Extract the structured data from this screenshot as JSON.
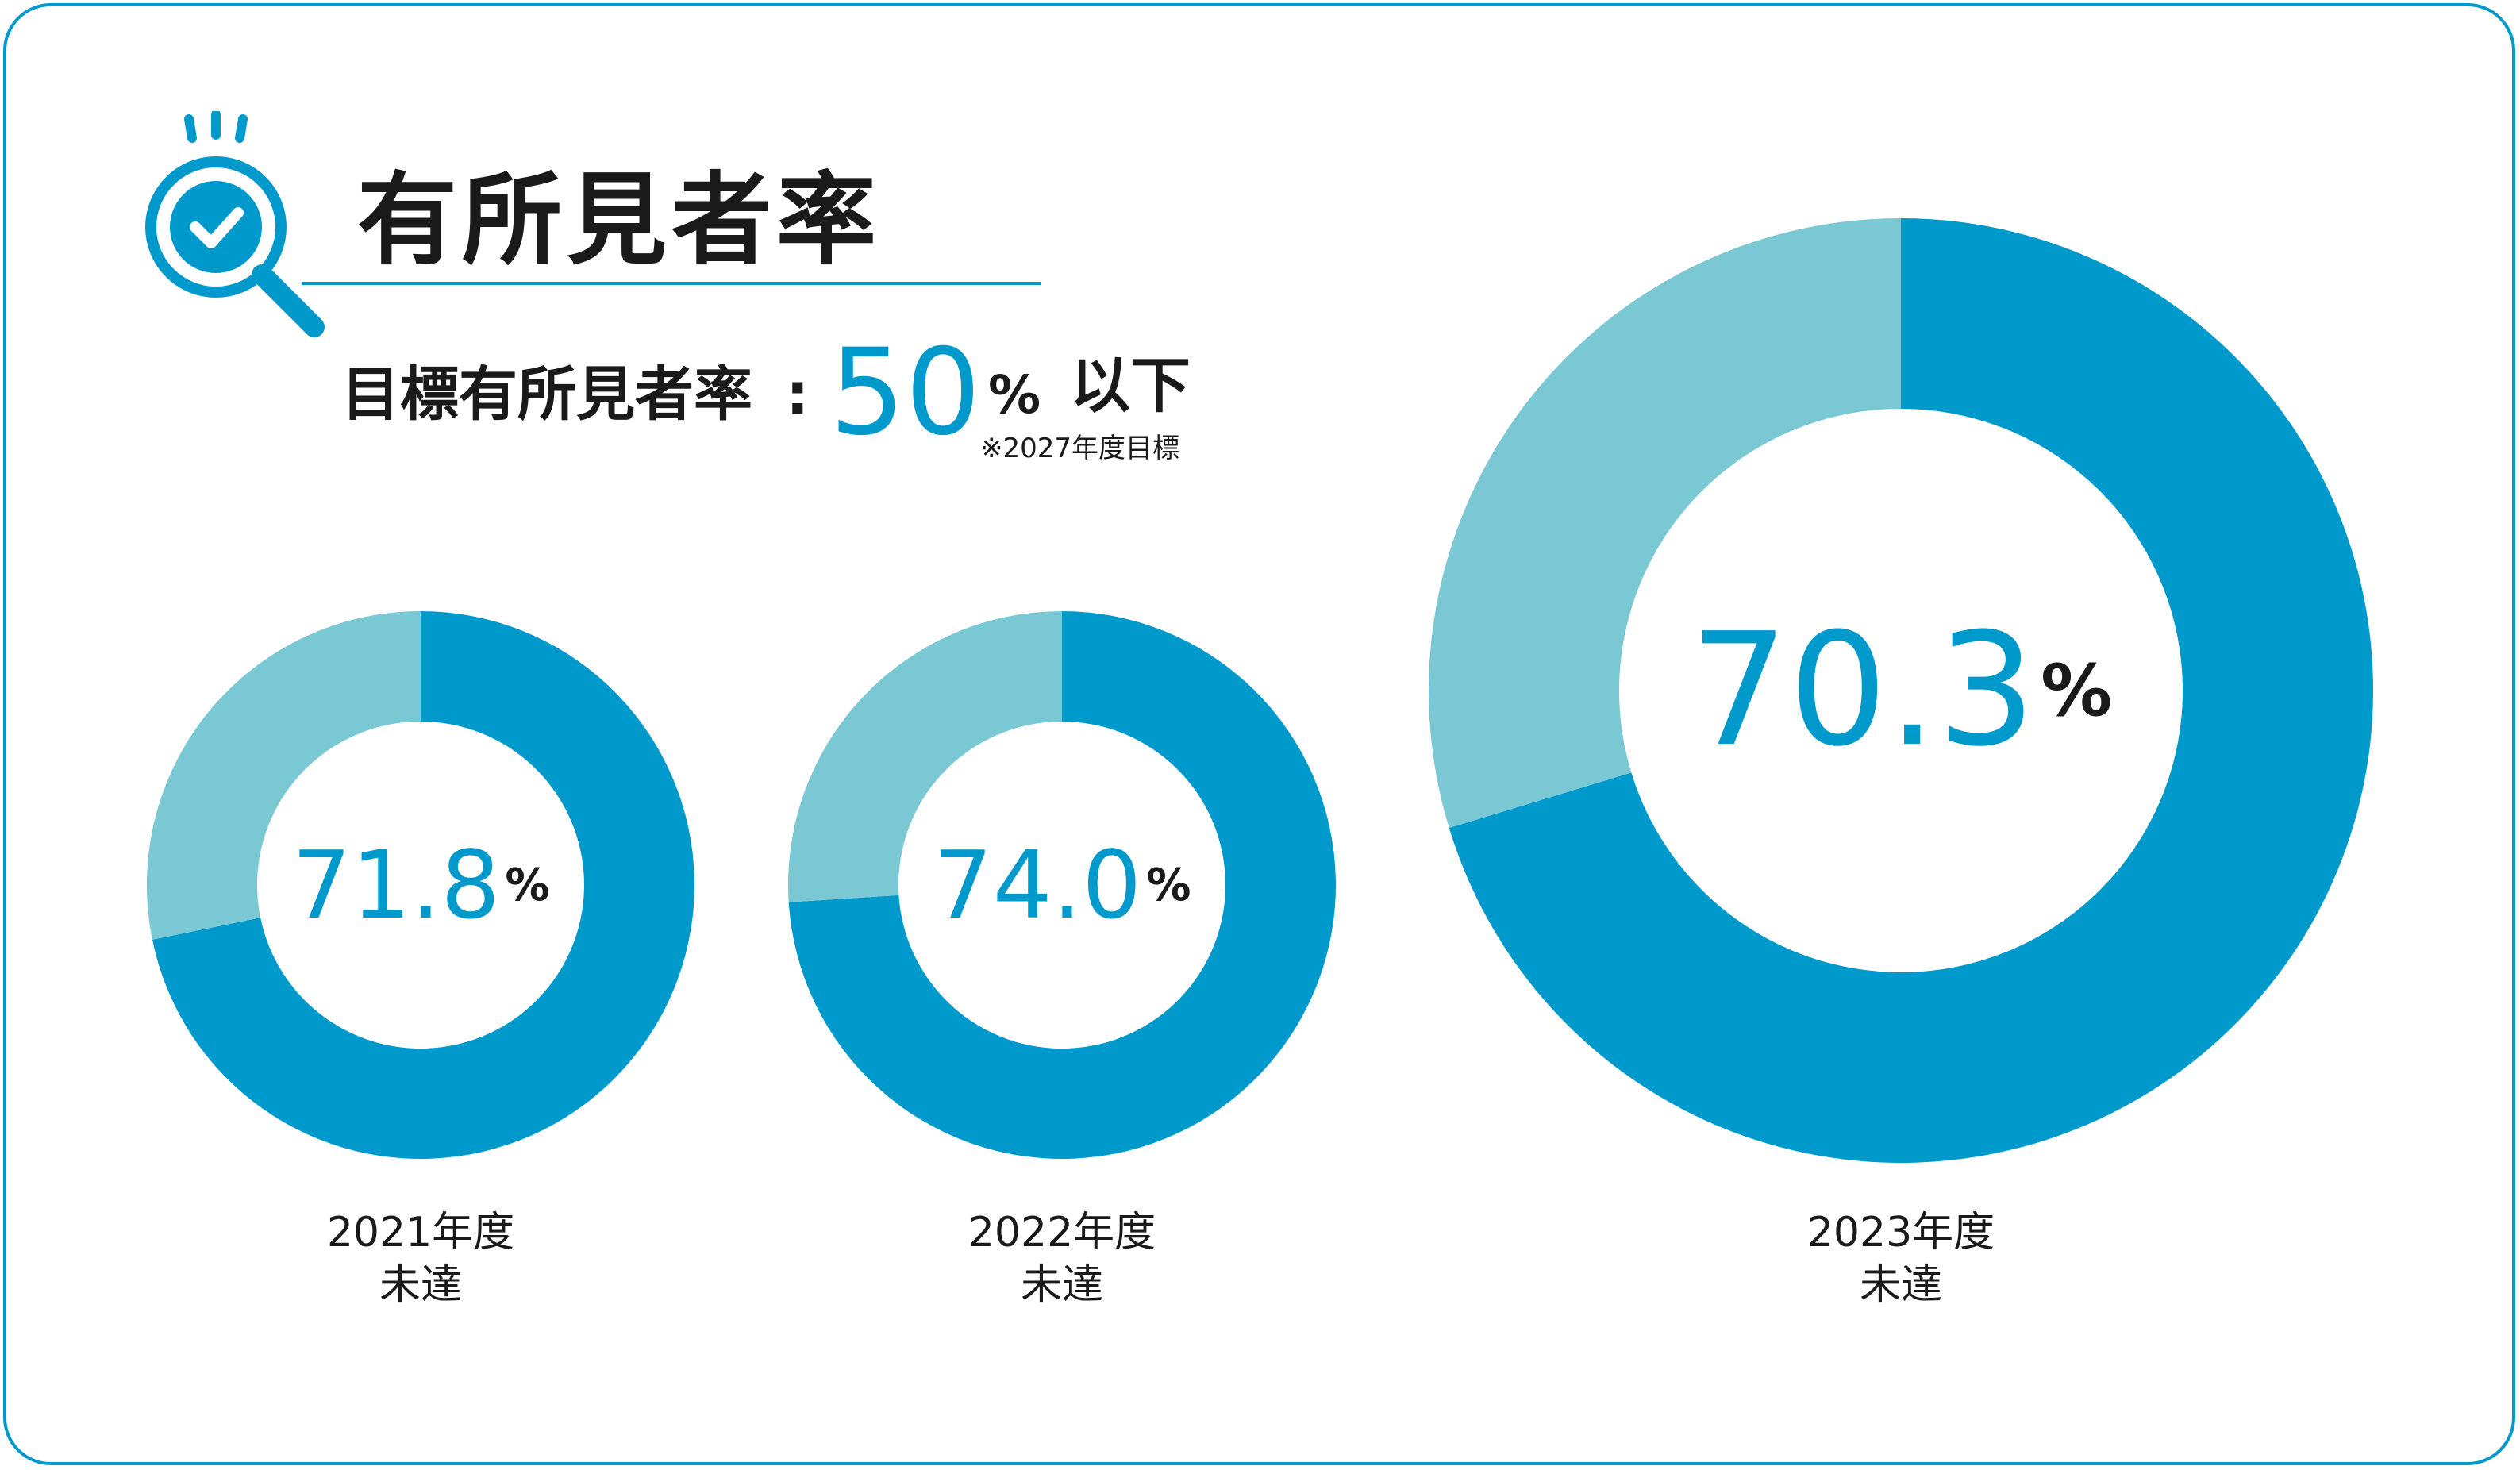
{
  "title": "有所見者率",
  "target": {
    "label": "目標有所見者率",
    "colon": ":",
    "value": "50",
    "unit": "%",
    "condition": "以下",
    "note": "※2027年度目標"
  },
  "colors": {
    "primary": "#0099cc",
    "secondary": "#7ac8d3",
    "text": "#1a1a1a"
  },
  "icons": [
    "magnifier-check-icon"
  ],
  "chart_data": [
    {
      "type": "pie",
      "year_label": "2021年度",
      "status": "未達",
      "value": 71.8,
      "value_text": "71.8",
      "unit": "%",
      "slices": [
        {
          "value": 71.8,
          "color": "#0099cc"
        },
        {
          "value": 28.2,
          "color": "#7ac8d3"
        }
      ]
    },
    {
      "type": "pie",
      "year_label": "2022年度",
      "status": "未達",
      "value": 74.0,
      "value_text": "74.0",
      "unit": "%",
      "slices": [
        {
          "value": 74.0,
          "color": "#0099cc"
        },
        {
          "value": 26.0,
          "color": "#7ac8d3"
        }
      ]
    },
    {
      "type": "pie",
      "year_label": "2023年度",
      "status": "未達",
      "value": 70.3,
      "value_text": "70.3",
      "unit": "%",
      "slices": [
        {
          "value": 70.3,
          "color": "#0099cc"
        },
        {
          "value": 29.7,
          "color": "#7ac8d3"
        }
      ]
    }
  ]
}
